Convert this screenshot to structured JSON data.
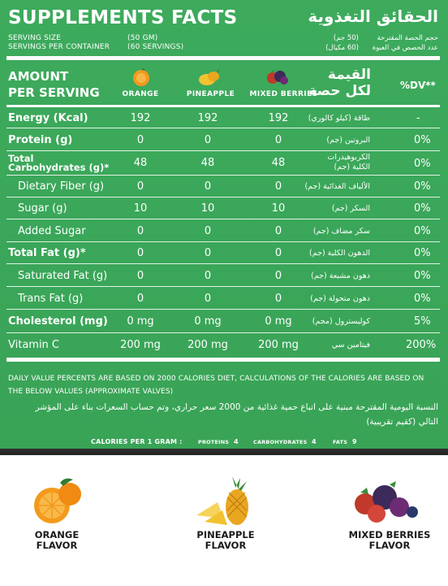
{
  "header": {
    "title": "SUPPLEMENTS FACTS",
    "title_ar": "الحقائق التغذوية",
    "serving_size_label": "SERVING SIZE",
    "serving_size_value": "(50 GM)",
    "servings_per_container_label": "SERVINGS PER CONTAINER",
    "servings_per_container_value": "(60 SERVINGS)",
    "serving_size_label_ar": "حجم الحصة المقترحة",
    "serving_size_value_ar": "(50 جم)",
    "servings_per_container_label_ar": "عدد الحصص في العبوة",
    "servings_per_container_value_ar": "(60 مكيال)"
  },
  "columns": {
    "amount_line1": "AMOUNT",
    "amount_line2": "PER SERVING",
    "flavors": [
      "ORANGE",
      "PINEAPPLE",
      "MIXED BERRIES"
    ],
    "amount_ar_line1": "القيمة",
    "amount_ar_line2": "لكل حصة",
    "dv_label": "%DV**"
  },
  "rows": [
    {
      "label": "Energy (Kcal)",
      "values": [
        "192",
        "192",
        "192"
      ],
      "label_ar": "طاقة (كيلو كالوري)",
      "dv": "-"
    },
    {
      "label": "Protein (g)",
      "values": [
        "0",
        "0",
        "0"
      ],
      "label_ar": "البروتين (جم)",
      "dv": "0%"
    },
    {
      "label": "Total",
      "label2": "Carbohydrates (g)*",
      "values": [
        "48",
        "48",
        "48"
      ],
      "label_ar": "الكربوهيدرات",
      "label_ar2": "الكلية (جم)",
      "dv": "0%"
    },
    {
      "label": "Dietary Fiber (g)",
      "values": [
        "0",
        "0",
        "0"
      ],
      "label_ar": "الألياف الغذائية (جم)",
      "dv": "0%"
    },
    {
      "label": "Sugar (g)",
      "values": [
        "10",
        "10",
        "10"
      ],
      "label_ar": "السكر (جم)",
      "dv": "0%"
    },
    {
      "label": "Added Sugar",
      "values": [
        "0",
        "0",
        "0"
      ],
      "label_ar": "سكر مضاف (جم)",
      "dv": "0%"
    },
    {
      "label": "Total Fat (g)*",
      "values": [
        "0",
        "0",
        "0"
      ],
      "label_ar": "الدهون الكلية (جم)",
      "dv": "0%"
    },
    {
      "label": "Saturated Fat (g)",
      "values": [
        "0",
        "0",
        "0"
      ],
      "label_ar": "دهون مشبعة (جم)",
      "dv": "0%"
    },
    {
      "label": "Trans Fat (g)",
      "values": [
        "0",
        "0",
        "0"
      ],
      "label_ar": "دهون متحولة (جم)",
      "dv": "0%"
    },
    {
      "label": "Cholesterol (mg)",
      "values": [
        "0 mg",
        "0 mg",
        "0 mg"
      ],
      "label_ar": "كوليسترول (مجم)",
      "dv": "5%"
    },
    {
      "label": "Vitamin C",
      "values": [
        "200 mg",
        "200 mg",
        "200 mg"
      ],
      "label_ar": "فيتامين سي",
      "dv": "200%"
    }
  ],
  "footer": {
    "note_line1": "DAILY VALUE PERCENTS ARE BASED ON 2000 CALORIES DIET, CALCULATIONS OF THE CALORIES ARE BASED ON",
    "note_line2": "THE BELOW VALUES (APPROXIMATE VALVES)",
    "note_ar_line1": "النسبة اليومية المقترحة مبنية على اتباع حمية غذائية من 2000 سعر حراري، وتم حساب السعرات بناء على المؤشر",
    "note_ar_line2": "التالي (كقيم تقريبية)",
    "calories_label": "CALORIES PER 1 GRAM :",
    "proteins_label": "PROTEINS",
    "proteins_value": "4",
    "carbs_label": "CARBOHYDRATES",
    "carbs_value": "4",
    "fats_label": "FATS",
    "fats_value": "9"
  },
  "flavors": [
    {
      "name": "ORANGE\nFLAVOR",
      "icon": "orange-fruit-icon"
    },
    {
      "name": "PINEAPPLE\nFLAVOR",
      "icon": "pineapple-fruit-icon"
    },
    {
      "name": "MIXED BERRIES\nFLAVOR",
      "icon": "mixed-berries-icon"
    }
  ],
  "colors": {
    "panel_green": "#3ba85a",
    "text_white": "#ffffff",
    "flavor_text": "#1a1a1a",
    "orange": "#f39a1c",
    "pineapple": "#f2c230",
    "berry_red": "#c0392b",
    "berry_purple": "#3b2a5a"
  }
}
